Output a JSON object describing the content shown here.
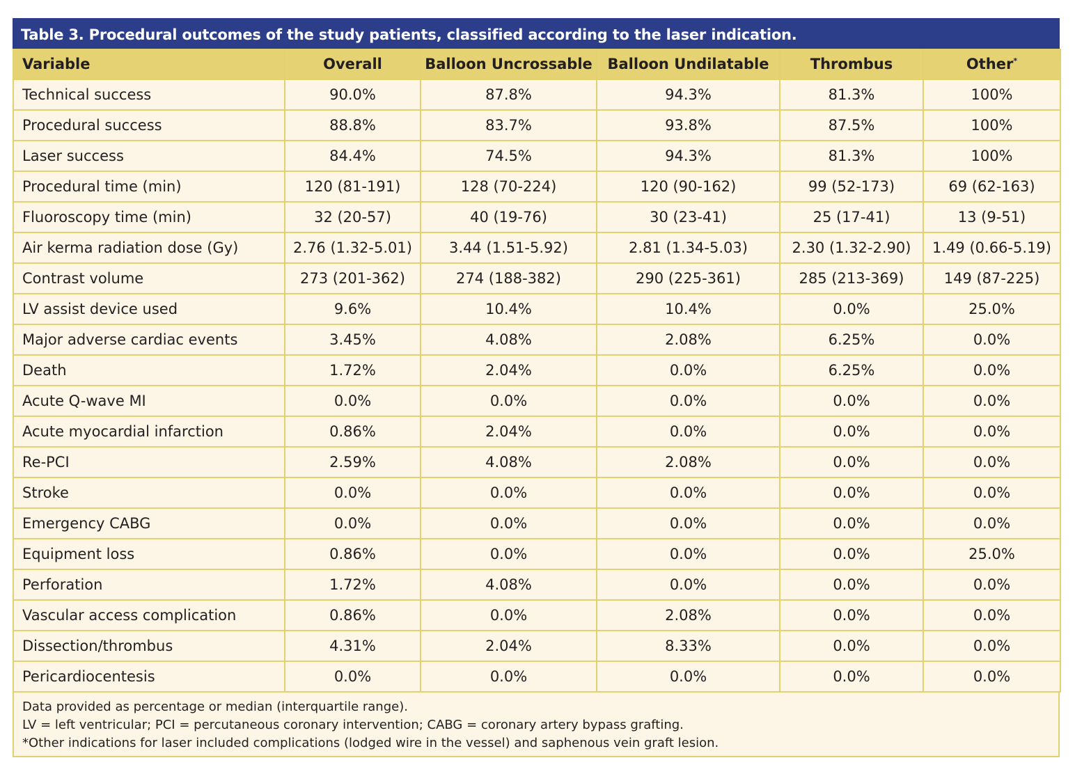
{
  "title": "Table 3. Procedural outcomes of the study patients, classified according to the laser indication.",
  "colors": {
    "title_bg": "#2c3e89",
    "header_bg": "#e5d373",
    "row_bg": "#fdf6e7",
    "border": "#e3d06f"
  },
  "columns": [
    "Variable",
    "Overall",
    "Balloon Uncrossable",
    "Balloon Undilatable",
    "Thrombus",
    "Other"
  ],
  "other_marker": "*",
  "rows": [
    [
      "Technical success",
      "90.0%",
      "87.8%",
      "94.3%",
      "81.3%",
      "100%"
    ],
    [
      "Procedural success",
      "88.8%",
      "83.7%",
      "93.8%",
      "87.5%",
      "100%"
    ],
    [
      "Laser success",
      "84.4%",
      "74.5%",
      "94.3%",
      "81.3%",
      "100%"
    ],
    [
      "Procedural time (min)",
      "120 (81-191)",
      "128 (70-224)",
      "120 (90-162)",
      "99 (52-173)",
      "69 (62-163)"
    ],
    [
      "Fluoroscopy time (min)",
      "32 (20-57)",
      "40 (19-76)",
      "30 (23-41)",
      "25 (17-41)",
      "13 (9-51)"
    ],
    [
      "Air kerma radiation dose (Gy)",
      "2.76 (1.32-5.01)",
      "3.44 (1.51-5.92)",
      "2.81 (1.34-5.03)",
      "2.30 (1.32-2.90)",
      "1.49 (0.66-5.19)"
    ],
    [
      "Contrast volume",
      "273 (201-362)",
      "274 (188-382)",
      "290 (225-361)",
      "285 (213-369)",
      "149 (87-225)"
    ],
    [
      "LV assist device used",
      "9.6%",
      "10.4%",
      "10.4%",
      "0.0%",
      "25.0%"
    ],
    [
      "Major adverse cardiac events",
      "3.45%",
      "4.08%",
      "2.08%",
      "6.25%",
      "0.0%"
    ],
    [
      "Death",
      "1.72%",
      "2.04%",
      "0.0%",
      "6.25%",
      "0.0%"
    ],
    [
      "Acute Q-wave MI",
      "0.0%",
      "0.0%",
      "0.0%",
      "0.0%",
      "0.0%"
    ],
    [
      "Acute myocardial infarction",
      "0.86%",
      "2.04%",
      "0.0%",
      "0.0%",
      "0.0%"
    ],
    [
      "Re-PCI",
      "2.59%",
      "4.08%",
      "2.08%",
      "0.0%",
      "0.0%"
    ],
    [
      "Stroke",
      "0.0%",
      "0.0%",
      "0.0%",
      "0.0%",
      "0.0%"
    ],
    [
      "Emergency CABG",
      "0.0%",
      "0.0%",
      "0.0%",
      "0.0%",
      "0.0%"
    ],
    [
      "Equipment loss",
      "0.86%",
      "0.0%",
      "0.0%",
      "0.0%",
      "25.0%"
    ],
    [
      "Perforation",
      "1.72%",
      "4.08%",
      "0.0%",
      "0.0%",
      "0.0%"
    ],
    [
      "Vascular access complication",
      "0.86%",
      "0.0%",
      "2.08%",
      "0.0%",
      "0.0%"
    ],
    [
      "Dissection/thrombus",
      "4.31%",
      "2.04%",
      "8.33%",
      "0.0%",
      "0.0%"
    ],
    [
      "Pericardiocentesis",
      "0.0%",
      "0.0%",
      "0.0%",
      "0.0%",
      "0.0%"
    ]
  ],
  "footnotes": [
    "Data provided as percentage or median (interquartile range).",
    "LV = left ventricular; PCI = percutaneous coronary intervention; CABG = coronary artery bypass grafting.",
    "*Other indications for laser included complications (lodged wire in the vessel) and saphenous vein graft lesion."
  ]
}
